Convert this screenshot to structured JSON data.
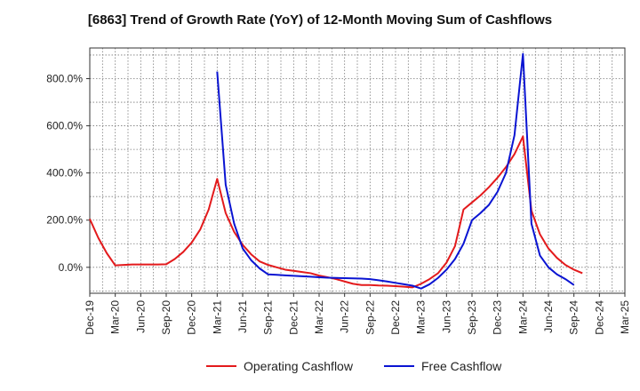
{
  "chart_data": {
    "type": "line",
    "title": "[6863]  Trend of Growth Rate (YoY) of 12-Month Moving Sum of Cashflows",
    "xlabel": "",
    "ylabel": "",
    "ylim": [
      -110,
      930
    ],
    "yticks": [
      "0.0%",
      "200.0%",
      "400.0%",
      "600.0%",
      "800.0%"
    ],
    "ytick_values": [
      0,
      200,
      400,
      600,
      800
    ],
    "xtick_labels": [
      "Dec-19",
      "Mar-20",
      "Jun-20",
      "Sep-20",
      "Dec-20",
      "Mar-21",
      "Jun-21",
      "Sep-21",
      "Dec-21",
      "Mar-22",
      "Jun-22",
      "Sep-22",
      "Dec-22",
      "Mar-23",
      "Jun-23",
      "Sep-23",
      "Dec-23",
      "Mar-24",
      "Jun-24",
      "Sep-24",
      "Dec-24",
      "Mar-25"
    ],
    "x_start": "Dec-19",
    "x_end": "Mar-25",
    "grid": true,
    "legend_position": "bottom",
    "series": [
      {
        "name": "Operating Cashflow",
        "color": "#e31a1c",
        "start": "Dec-19",
        "values": [
          205,
          125,
          60,
          8,
          10,
          12,
          12,
          12,
          12,
          13,
          35,
          65,
          105,
          160,
          245,
          375,
          230,
          150,
          95,
          55,
          25,
          10,
          0,
          -10,
          -15,
          -20,
          -25,
          -35,
          -42,
          -50,
          -60,
          -70,
          -75,
          -75,
          -77,
          -78,
          -80,
          -82,
          -85,
          -70,
          -50,
          -25,
          20,
          90,
          245,
          275,
          305,
          340,
          380,
          425,
          480,
          555,
          240,
          140,
          80,
          40,
          10,
          -10,
          -25
        ]
      },
      {
        "name": "Free Cashflow",
        "color": "#0a14d2",
        "start": "Mar-21",
        "values": [
          830,
          350,
          185,
          80,
          30,
          -5,
          -30,
          -32,
          -34,
          -36,
          -38,
          -40,
          -42,
          -44,
          -45,
          -46,
          -47,
          -48,
          -50,
          -55,
          -60,
          -66,
          -72,
          -78,
          -90,
          -72,
          -45,
          -10,
          35,
          100,
          200,
          230,
          265,
          320,
          400,
          560,
          905,
          185,
          50,
          0,
          -30,
          -50,
          -75
        ]
      }
    ]
  }
}
